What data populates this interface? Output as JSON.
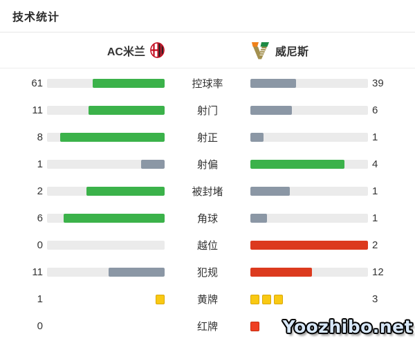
{
  "title": "技术统计",
  "teams": {
    "home": {
      "name": "AC米兰"
    },
    "away": {
      "name": "威尼斯"
    }
  },
  "watermark": "Yoozhibo.net",
  "colors": {
    "green": "#3bb24a",
    "slate": "#8b97a5",
    "red": "#dc3a1e",
    "track": "#ebebeb",
    "yellow_card": "#f9c913",
    "yellow_card_border": "#d9a70a",
    "red_card": "#ee4023",
    "red_card_border": "#c52d10"
  },
  "rows": [
    {
      "label": "控球率",
      "home": {
        "value": "61",
        "style": "green"
      },
      "away": {
        "value": "39",
        "style": "slate"
      }
    },
    {
      "label": "射门",
      "home": {
        "value": "11",
        "style": "green"
      },
      "away": {
        "value": "6",
        "style": "slate"
      }
    },
    {
      "label": "射正",
      "home": {
        "value": "8",
        "style": "green"
      },
      "away": {
        "value": "1",
        "style": "slate"
      }
    },
    {
      "label": "射偏",
      "home": {
        "value": "1",
        "style": "slate"
      },
      "away": {
        "value": "4",
        "style": "green"
      }
    },
    {
      "label": "被封堵",
      "home": {
        "value": "2",
        "style": "green"
      },
      "away": {
        "value": "1",
        "style": "slate"
      }
    },
    {
      "label": "角球",
      "home": {
        "value": "6",
        "style": "green"
      },
      "away": {
        "value": "1",
        "style": "slate"
      }
    },
    {
      "label": "越位",
      "home": {
        "value": "0",
        "style": "slate"
      },
      "away": {
        "value": "2",
        "style": "red"
      }
    },
    {
      "label": "犯规",
      "home": {
        "value": "11",
        "style": "slate"
      },
      "away": {
        "value": "12",
        "style": "red"
      }
    },
    {
      "label": "黄牌",
      "type": "cards",
      "home": {
        "value": "1",
        "cards": 1,
        "card": "yellow"
      },
      "away": {
        "value": "3",
        "cards": 3,
        "card": "yellow"
      }
    },
    {
      "label": "红牌",
      "type": "cards",
      "home": {
        "value": "0",
        "cards": 0,
        "card": "red"
      },
      "away": {
        "value": "",
        "cards": 1,
        "card": "red"
      }
    }
  ],
  "chart_data": {
    "type": "bar",
    "title": "技术统计",
    "layout": "mirrored horizontal bars; category labels centered; values at outer edges; fill = value/(home+away); green/red = leading side, slate = trailing side; cards rendered as square icons",
    "categories": [
      "控球率",
      "射门",
      "射正",
      "射偏",
      "被封堵",
      "角球",
      "越位",
      "犯规",
      "黄牌",
      "红牌"
    ],
    "series": [
      {
        "name": "AC米兰",
        "values": [
          61,
          11,
          8,
          1,
          2,
          6,
          0,
          11,
          1,
          0
        ]
      },
      {
        "name": "威尼斯",
        "values": [
          39,
          6,
          1,
          4,
          1,
          1,
          2,
          12,
          3,
          1
        ]
      }
    ],
    "note": "控球率 values are percentages; 威尼斯红牌 numeric label is obscured by the Yoozhibo.net watermark, count of 1 shown by a single red-card icon"
  }
}
